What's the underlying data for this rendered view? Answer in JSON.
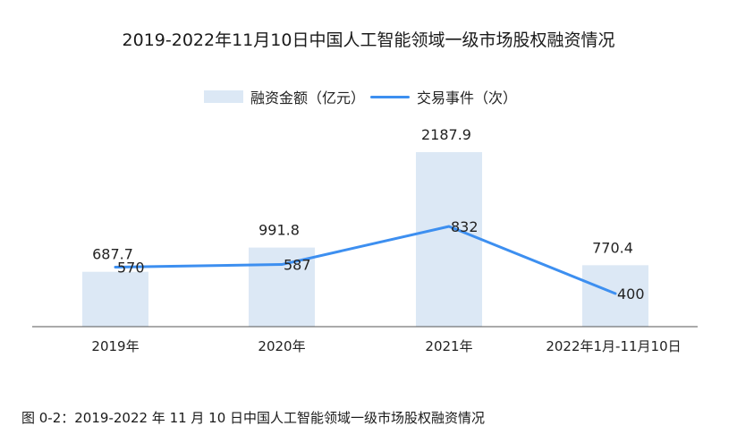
{
  "chart_data": {
    "type": "bar",
    "title": "2019-2022年11月10日中国人工智能领域一级市场股权融资情况",
    "categories": [
      "2019年",
      "2020年",
      "2021年",
      "2022年1月-11月10日"
    ],
    "series": [
      {
        "name": "融资金额（亿元）",
        "type": "bar",
        "values": [
          687.7,
          991.8,
          2187.9,
          770.4
        ],
        "labels": [
          "687.7",
          "991.8",
          "2187.9",
          "770.4"
        ]
      },
      {
        "name": "交易事件（次）",
        "type": "line",
        "values": [
          570,
          587,
          832,
          400
        ],
        "labels": [
          "570",
          "587",
          "832",
          "400"
        ]
      }
    ],
    "colors": {
      "bar": "#dce8f5",
      "line": "#3d8ff0",
      "axis": "#555555"
    },
    "grid": false,
    "legend_position": "top-center"
  },
  "caption": "图 0-2：2019-2022 年 11 月 10 日中国人工智能领域一级市场股权融资情况"
}
